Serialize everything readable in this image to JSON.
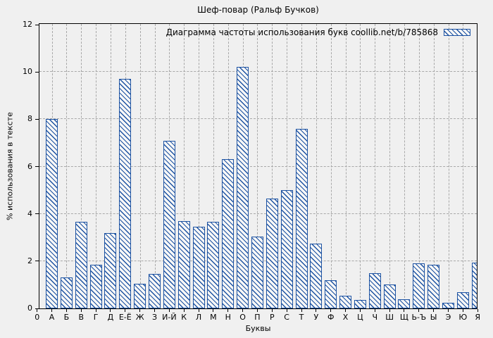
{
  "colors": {
    "background": "#f0f0f0",
    "axis": "#000000",
    "gridline": "#a8a8a8",
    "bar_border": "#1c52a2",
    "bar_fill": "#f7f7f7",
    "text": "#000000"
  },
  "chart_data": {
    "type": "bar",
    "title": "Шеф-повар (Ральф Бучков)",
    "legend": "Диаграмма частоты использования букв coollib.net/b/785868",
    "legend_position": "top-right",
    "xlabel": "Буквы",
    "ylabel": "% использования в тексте",
    "categories": [
      "А",
      "Б",
      "В",
      "Г",
      "Д",
      "Е-Ё",
      "Ж",
      "З",
      "И-Й",
      "К",
      "Л",
      "М",
      "Н",
      "О",
      "П",
      "Р",
      "С",
      "Т",
      "У",
      "Ф",
      "Х",
      "Ц",
      "Ч",
      "Ш",
      "Щ",
      "Ь-Ъ",
      "Ы",
      "Э",
      "Ю",
      "Я"
    ],
    "values": [
      8.0,
      1.3,
      3.65,
      1.85,
      3.2,
      9.7,
      1.05,
      1.45,
      7.1,
      3.7,
      3.45,
      3.65,
      6.3,
      10.2,
      3.05,
      4.65,
      5.0,
      7.6,
      2.75,
      1.2,
      0.55,
      0.35,
      1.5,
      1.0,
      0.4,
      1.9,
      1.85,
      0.25,
      0.7,
      1.95
    ],
    "xticks": [
      "0",
      "А",
      "Б",
      "В",
      "Г",
      "Д",
      "Е-Ё",
      "Ж",
      "З",
      "И-Й",
      "К",
      "Л",
      "М",
      "Н",
      "О",
      "П",
      "Р",
      "С",
      "Т",
      "У",
      "Ф",
      "Х",
      "Ц",
      "Ч",
      "Ш",
      "Щ",
      "Ь-Ъ",
      "Ы",
      "Э",
      "Ю",
      "Я"
    ],
    "yticks": [
      0,
      2,
      4,
      6,
      8,
      10,
      12
    ],
    "ylim": [
      0,
      12
    ],
    "grid": true,
    "bar_hatch": "diagonal",
    "unit": "%"
  }
}
